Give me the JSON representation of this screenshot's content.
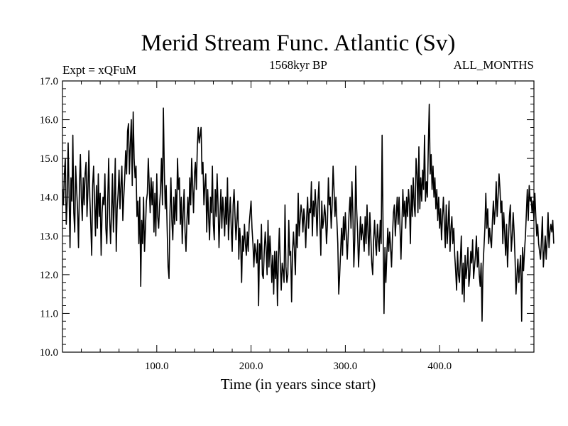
{
  "chart_data": {
    "type": "line",
    "title": "Merid Stream Func. Atlantic (Sv)",
    "subtitle_left": "Expt = xQFuM",
    "subtitle_center": "1568kyr BP",
    "subtitle_right": "ALL_MONTHS",
    "xlabel": "Time (in years since start)",
    "ylabel": "",
    "xlim": [
      0,
      500
    ],
    "ylim": [
      10.0,
      17.0
    ],
    "x_ticks": [
      100,
      200,
      300,
      400
    ],
    "x_tick_labels": [
      "100.0",
      "200.0",
      "300.0",
      "400.0"
    ],
    "y_ticks": [
      10,
      11,
      12,
      13,
      14,
      15,
      16,
      17
    ],
    "y_tick_labels": [
      "10.0",
      "11.0",
      "12.0",
      "13.0",
      "14.0",
      "15.0",
      "16.0",
      "17.0"
    ],
    "series": [
      {
        "name": "Merid Stream Func. Atlantic",
        "color": "#000000",
        "x_start": 0,
        "x_step": 1,
        "values": [
          14.2,
          13.8,
          14.6,
          15.0,
          13.3,
          13.9,
          15.4,
          14.1,
          12.7,
          14.5,
          13.9,
          15.6,
          13.6,
          13.1,
          14.8,
          14.2,
          13.7,
          12.7,
          14.3,
          15.1,
          14.0,
          13.4,
          14.5,
          13.8,
          14.6,
          14.9,
          13.5,
          14.2,
          15.2,
          14.0,
          13.3,
          12.5,
          14.3,
          14.8,
          13.9,
          13.0,
          14.3,
          13.2,
          14.6,
          13.5,
          14.1,
          12.5,
          13.6,
          14.0,
          13.8,
          14.6,
          13.2,
          12.8,
          13.9,
          15.0,
          13.5,
          12.8,
          13.6,
          14.6,
          13.1,
          13.9,
          15.0,
          12.6,
          13.7,
          14.1,
          14.7,
          13.7,
          14.3,
          14.8,
          13.4,
          14.0,
          14.5,
          15.2,
          14.6,
          15.7,
          15.9,
          14.6,
          15.4,
          16.0,
          14.3,
          16.2,
          15.0,
          14.5,
          14.8,
          13.5,
          13.9,
          12.8,
          14.0,
          11.7,
          13.4,
          12.8,
          14.0,
          12.6,
          13.2,
          13.9,
          14.1,
          15.0,
          14.3,
          13.6,
          14.5,
          13.8,
          14.4,
          13.1,
          14.1,
          13.0,
          14.6,
          13.5,
          13.2,
          13.8,
          14.2,
          15.0,
          13.8,
          16.3,
          14.7,
          13.7,
          14.3,
          13.2,
          12.2,
          11.9,
          13.6,
          14.5,
          13.4,
          12.9,
          14.0,
          13.3,
          14.2,
          13.4,
          15.0,
          14.2,
          14.5,
          13.3,
          14.0,
          12.8,
          13.6,
          14.2,
          13.1,
          12.6,
          13.4,
          14.0,
          13.3,
          14.5,
          13.8,
          15.0,
          14.3,
          13.6,
          14.6,
          14.9,
          14.2,
          15.3,
          15.8,
          15.4,
          15.6,
          15.8,
          14.6,
          14.9,
          13.8,
          14.3,
          14.6,
          13.1,
          14.2,
          13.5,
          12.9,
          14.0,
          13.6,
          14.8,
          13.3,
          12.9,
          14.2,
          13.5,
          14.6,
          13.8,
          12.7,
          13.5,
          14.2,
          13.2,
          14.0,
          13.6,
          13.0,
          14.0,
          13.3,
          14.5,
          12.9,
          13.5,
          14.0,
          13.2,
          12.6,
          13.8,
          14.2,
          13.5,
          12.9,
          13.4,
          13.9,
          12.4,
          13.2,
          12.8,
          11.8,
          13.0,
          12.6,
          13.3,
          12.8,
          12.5,
          13.1,
          12.6,
          13.3,
          13.6,
          13.9,
          13.2,
          12.8,
          12.2,
          12.8,
          12.6,
          12.3,
          12.9,
          11.2,
          12.8,
          12.4,
          13.3,
          12.0,
          11.9,
          12.6,
          13.1,
          12.7,
          12.0,
          13.4,
          12.2,
          13.0,
          12.5,
          11.8,
          12.5,
          11.5,
          12.6,
          11.9,
          12.6,
          11.2,
          12.4,
          13.2,
          12.3,
          11.6,
          12.3,
          12.1,
          11.8,
          13.8,
          12.2,
          11.8,
          12.0,
          13.4,
          12.5,
          12.6,
          11.3,
          12.6,
          13.1,
          12.6,
          12.0,
          13.3,
          12.7,
          14.1,
          13.0,
          13.4,
          13.8,
          13.6,
          13.1,
          13.7,
          13.4,
          12.7,
          13.5,
          14.0,
          13.2,
          13.7,
          13.6,
          14.4,
          13.0,
          13.9,
          13.5,
          14.2,
          13.7,
          13.0,
          13.9,
          14.4,
          13.3,
          12.5,
          13.9,
          13.2,
          13.4,
          13.8,
          13.5,
          12.8,
          13.3,
          14.5,
          13.8,
          14.0,
          13.2,
          13.8,
          14.8,
          14.2,
          13.5,
          14.0,
          13.4,
          12.8,
          11.5,
          12.0,
          12.6,
          13.2,
          12.5,
          13.5,
          12.9,
          13.6,
          13.0,
          12.4,
          13.0,
          13.6,
          14.0,
          13.2,
          14.4,
          13.6,
          12.2,
          12.9,
          14.8,
          13.7,
          13.1,
          12.2,
          12.8,
          13.5,
          12.9,
          13.3,
          13.0,
          12.6,
          13.5,
          12.8,
          13.8,
          13.1,
          12.5,
          13.6,
          13.0,
          12.3,
          12.0,
          12.9,
          13.4,
          12.8,
          12.5,
          13.3,
          12.9,
          12.6,
          13.4,
          12.8,
          15.6,
          13.2,
          11.0,
          12.7,
          11.8,
          12.5,
          13.2,
          12.6,
          13.1,
          12.7,
          12.2,
          13.0,
          13.6,
          13.8,
          13.0,
          13.5,
          14.0,
          13.3,
          14.0,
          13.2,
          12.4,
          13.3,
          14.2,
          13.5,
          13.9,
          13.2,
          14.0,
          13.5,
          14.2,
          13.8,
          12.8,
          14.3,
          13.5,
          14.5,
          13.8,
          13.5,
          15.0,
          14.6,
          13.6,
          15.3,
          13.7,
          14.5,
          13.9,
          14.7,
          14.2,
          15.6,
          13.9,
          14.4,
          14.0,
          15.3,
          16.4,
          14.6,
          15.1,
          14.2,
          14.8,
          14.0,
          14.5,
          13.7,
          14.2,
          13.4,
          14.0,
          13.2,
          13.7,
          12.9,
          13.5,
          14.0,
          13.3,
          12.7,
          13.8,
          12.8,
          13.3,
          13.9,
          12.6,
          13.2,
          13.5,
          12.8,
          13.2,
          12.5,
          12.1,
          11.6,
          12.6,
          12.0,
          11.8,
          12.4,
          13.0,
          11.5,
          12.3,
          11.3,
          12.5,
          11.9,
          12.2,
          12.7,
          11.7,
          12.0,
          12.6,
          12.3,
          12.9,
          11.9,
          12.2,
          12.5,
          13.0,
          12.2,
          12.7,
          12.0,
          11.7,
          12.3,
          10.8,
          12.2,
          12.7,
          13.2,
          14.1,
          13.2,
          13.7,
          12.8,
          13.2,
          12.9,
          12.7,
          13.4,
          13.9,
          13.3,
          13.7,
          14.4,
          13.5,
          14.0,
          14.6,
          14.2,
          13.6,
          13.9,
          12.8,
          13.6,
          13.1,
          12.5,
          13.3,
          12.2,
          12.9,
          13.5,
          13.8,
          12.6,
          13.0,
          13.6,
          13.1,
          12.4,
          11.5,
          12.0,
          12.4,
          11.8,
          12.2,
          12.5,
          10.8,
          12.7,
          12.1,
          12.6,
          13.0,
          13.6,
          14.2,
          13.4,
          14.3,
          13.9,
          14.0,
          13.6,
          13.9,
          13.4,
          14.1,
          13.5,
          13.0,
          13.3,
          12.8,
          12.6,
          12.4,
          12.9,
          13.5,
          12.2,
          12.6,
          13.0,
          12.4,
          12.9,
          13.6,
          12.7,
          13.1,
          13.3,
          13.1,
          13.4,
          12.8
        ]
      }
    ]
  }
}
